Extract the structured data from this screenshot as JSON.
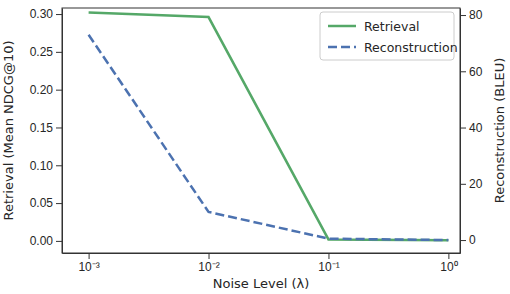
{
  "chart_data": {
    "type": "line",
    "x_label": "Noise Level (λ)",
    "y_label": "Retrieval (Mean NDCG@10)",
    "y2_label": "Reconstruction (BLEU)",
    "log": "x",
    "grid": false,
    "legend": "upper right",
    "x": [
      0.001,
      0.01,
      0.1,
      1
    ],
    "xlim": [
      0.0006,
      1.25
    ],
    "xticks": [
      {
        "value": 0.001,
        "label": "10⁻³"
      },
      {
        "value": 0.01,
        "label": "10⁻²"
      },
      {
        "value": 0.1,
        "label": "10⁻¹"
      },
      {
        "value": 1,
        "label": "10⁰"
      }
    ],
    "ylim": [
      -0.016,
      0.308
    ],
    "yticks": [
      {
        "value": 0,
        "label": "0.00"
      },
      {
        "value": 0.05,
        "label": "0.05"
      },
      {
        "value": 0.1,
        "label": "0.10"
      },
      {
        "value": 0.15,
        "label": "0.15"
      },
      {
        "value": 0.2,
        "label": "0.20"
      },
      {
        "value": 0.25,
        "label": "0.25"
      },
      {
        "value": 0.3,
        "label": "0.30"
      }
    ],
    "y2lim": [
      -4.6,
      82.5
    ],
    "y2ticks": [
      0,
      20,
      40,
      60,
      80
    ],
    "series": [
      {
        "name": "Retrieval",
        "color": "#55a868",
        "line_style": "solid",
        "axis": "y",
        "values": [
          0.302,
          0.296,
          0.002,
          0.001
        ]
      },
      {
        "name": "Reconstruction",
        "color": "#4c72b0",
        "line_style": "dashed",
        "axis": "y2",
        "values": [
          73,
          10,
          0.5,
          0
        ]
      }
    ]
  }
}
